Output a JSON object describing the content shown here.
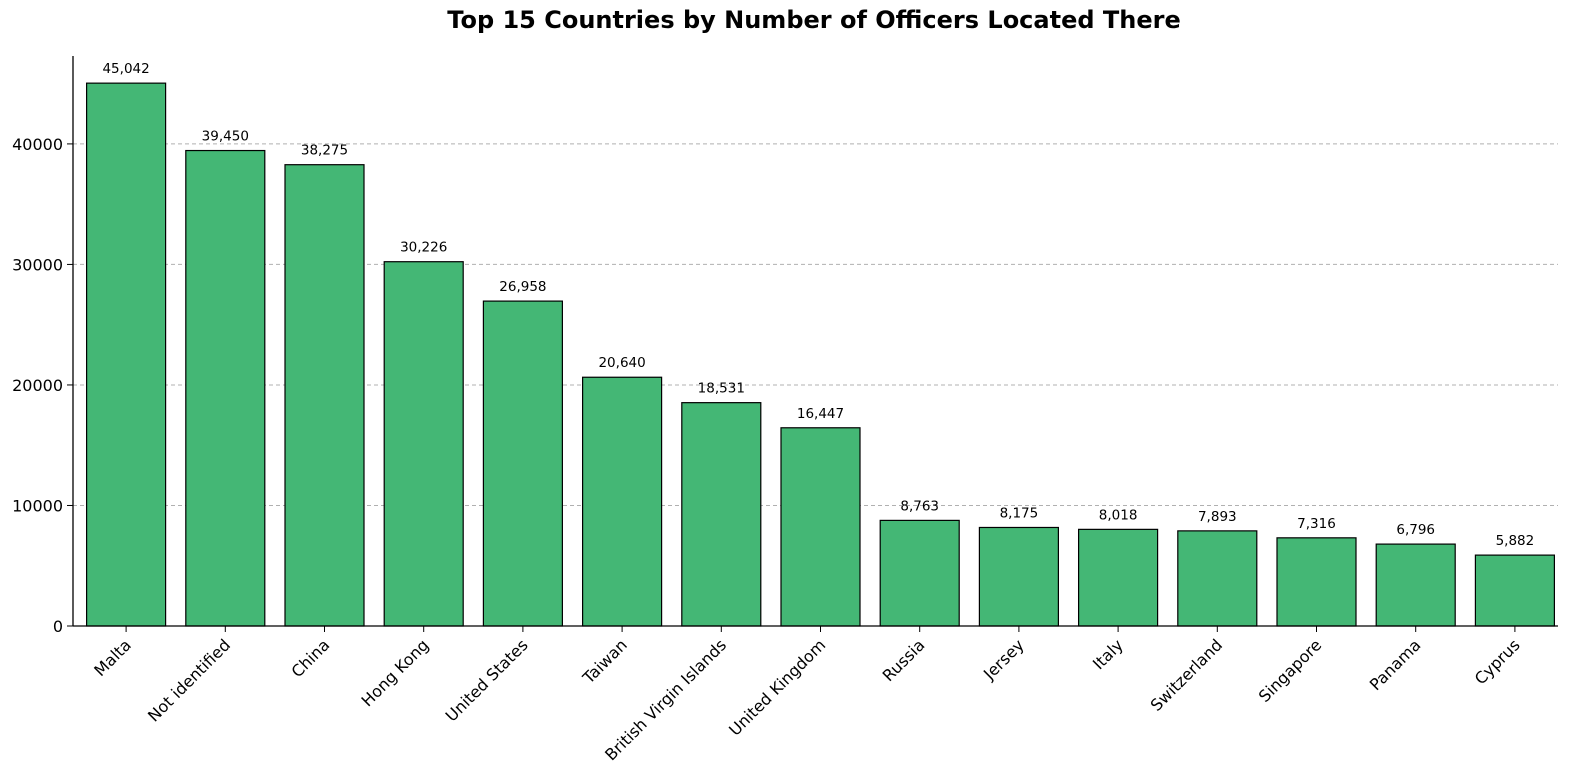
{
  "chart_data": {
    "type": "bar",
    "title": "Top 15 Countries by Number of Officers Located There",
    "xlabel": "",
    "ylabel": "",
    "categories": [
      "Malta",
      "Not identified",
      "China",
      "Hong Kong",
      "United States",
      "Taiwan",
      "British Virgin Islands",
      "United Kingdom",
      "Russia",
      "Jersey",
      "Italy",
      "Switzerland",
      "Singapore",
      "Panama",
      "Cyprus"
    ],
    "values": [
      45042,
      39450,
      38275,
      30226,
      26958,
      20640,
      18531,
      16447,
      8763,
      8175,
      8018,
      7893,
      7316,
      6796,
      5882
    ],
    "value_labels": [
      "45,042",
      "39,450",
      "38,275",
      "30,226",
      "26,958",
      "20,640",
      "18,531",
      "16,447",
      "8,763",
      "8,175",
      "8,018",
      "7,893",
      "7,316",
      "6,796",
      "5,882"
    ],
    "y_ticks": [
      0,
      10000,
      20000,
      30000,
      40000
    ],
    "y_tick_labels": [
      "0",
      "10000",
      "20000",
      "30000",
      "40000"
    ],
    "ylim": [
      0,
      47294
    ],
    "grid": "y-dashed",
    "bar_color": "#44b775",
    "edge_color": "#000000"
  }
}
